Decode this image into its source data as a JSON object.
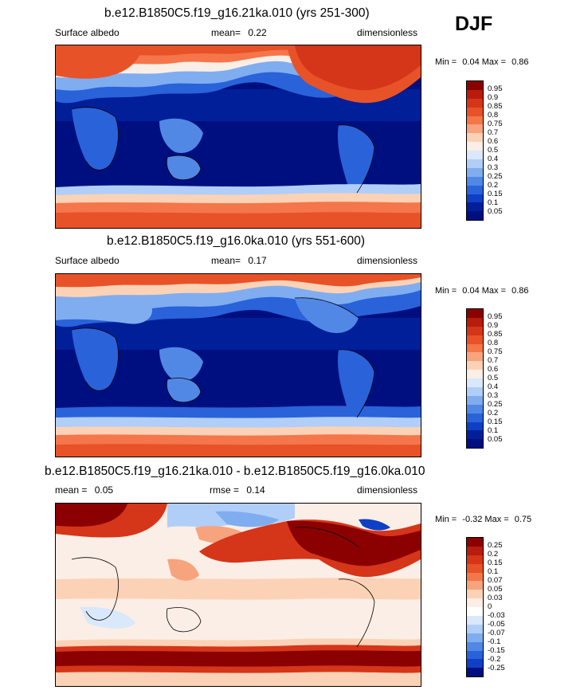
{
  "season": "DJF",
  "panels": [
    {
      "title": "b.e12.B1850C5.f19_g16.21ka.010 (yrs 251-300)",
      "left_label": "Surface albedo",
      "mid_label": "mean=",
      "mid_value": "0.22",
      "right_label": "dimensionless",
      "min_text": "Min =",
      "min_value": "0.04",
      "max_text": "Max =",
      "max_value": "0.86",
      "colorbar_labels": [
        "0.95",
        "0.9",
        "0.85",
        "0.8",
        "0.75",
        "0.7",
        "0.6",
        "0.5",
        "0.4",
        "0.3",
        "0.25",
        "0.2",
        "0.15",
        "0.1",
        "0.05"
      ]
    },
    {
      "title": "b.e12.B1850C5.f19_g16.0ka.010 (yrs 551-600)",
      "left_label": "Surface albedo",
      "mid_label": "mean=",
      "mid_value": "0.17",
      "right_label": "dimensionless",
      "min_text": "Min =",
      "min_value": "0.04",
      "max_text": "Max =",
      "max_value": "0.86",
      "colorbar_labels": [
        "0.95",
        "0.9",
        "0.85",
        "0.8",
        "0.75",
        "0.7",
        "0.6",
        "0.5",
        "0.4",
        "0.3",
        "0.25",
        "0.2",
        "0.15",
        "0.1",
        "0.05"
      ]
    },
    {
      "title": "b.e12.B1850C5.f19_g16.21ka.010 - b.e12.B1850C5.f19_g16.0ka.010",
      "left_label": "mean =",
      "left_value": "0.05",
      "mid_label": "rmse =",
      "mid_value": "0.14",
      "right_label": "dimensionless",
      "min_text": "Min =",
      "min_value": "-0.32",
      "max_text": "Max =",
      "max_value": "0.75",
      "colorbar_labels": [
        "0.25",
        "0.2",
        "0.15",
        "0.1",
        "0.07",
        "0.05",
        "0.03",
        "0",
        "-0.03",
        "-0.05",
        "-0.07",
        "-0.1",
        "-0.15",
        "-0.2",
        "-0.25"
      ]
    }
  ],
  "colors": {
    "sequential": [
      "#8b0000",
      "#b71c0c",
      "#d53519",
      "#e85228",
      "#f4764a",
      "#f7a37e",
      "#fcd2b6",
      "#fbeee6",
      "#d9e8fb",
      "#b0cef7",
      "#7fadf0",
      "#5188e6",
      "#2a62da",
      "#0f3fc4",
      "#001f99",
      "#000f80"
    ],
    "diverging": [
      "#8b0000",
      "#b71c0c",
      "#d53519",
      "#e85228",
      "#f4764a",
      "#f7a37e",
      "#fcd2b6",
      "#fbeee6",
      "#ffffff",
      "#d9e8fb",
      "#b0cef7",
      "#7fadf0",
      "#5188e6",
      "#2a62da",
      "#0f3fc4",
      "#000f80"
    ]
  }
}
